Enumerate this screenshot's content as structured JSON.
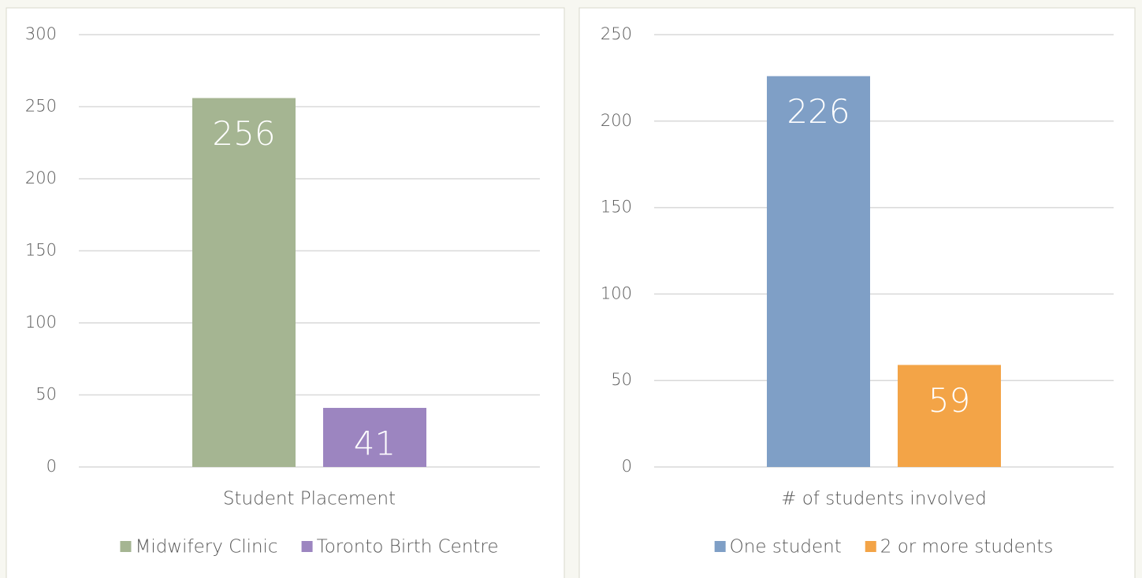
{
  "chart_data": [
    {
      "type": "bar",
      "categories": [
        "Student Placement"
      ],
      "series": [
        {
          "name": "Midwifery Clinic",
          "color": "#a5b592",
          "values": [
            256
          ]
        },
        {
          "name": "Toronto Birth Centre",
          "color": "#9c85c0",
          "values": [
            41
          ]
        }
      ],
      "ylim": [
        0,
        300
      ],
      "yticks": [
        0,
        50,
        100,
        150,
        200,
        250,
        300
      ],
      "grid": true
    },
    {
      "type": "bar",
      "categories": [
        "# of students involved"
      ],
      "series": [
        {
          "name": "One student",
          "color": "#7f9fc6",
          "values": [
            226
          ]
        },
        {
          "name": "2 or more students",
          "color": "#f3a447",
          "values": [
            59
          ]
        }
      ],
      "ylim": [
        0,
        250
      ],
      "yticks": [
        0,
        50,
        100,
        150,
        200,
        250
      ],
      "grid": true
    }
  ]
}
